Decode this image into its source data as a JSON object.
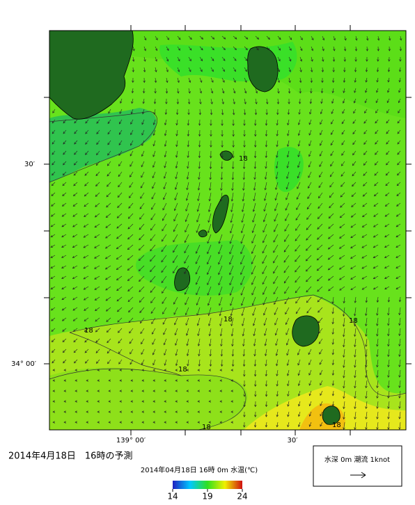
{
  "map": {
    "lat_labels": [
      "30′",
      "34° 00′"
    ],
    "lon_labels": [
      "139° 00′",
      "30′"
    ],
    "contour_labels": [
      "18",
      "18",
      "18",
      "18",
      "18",
      "18",
      "18"
    ]
  },
  "title": "2014年4月18日　16時の予測",
  "subtitle": "2014年04月18日 16時 0m 水温(℃)",
  "colorbar": {
    "ticks": [
      14,
      19,
      24
    ],
    "lim": [
      14,
      24
    ]
  },
  "legend": {
    "label": "水深 0m 潮流 1knot"
  }
}
